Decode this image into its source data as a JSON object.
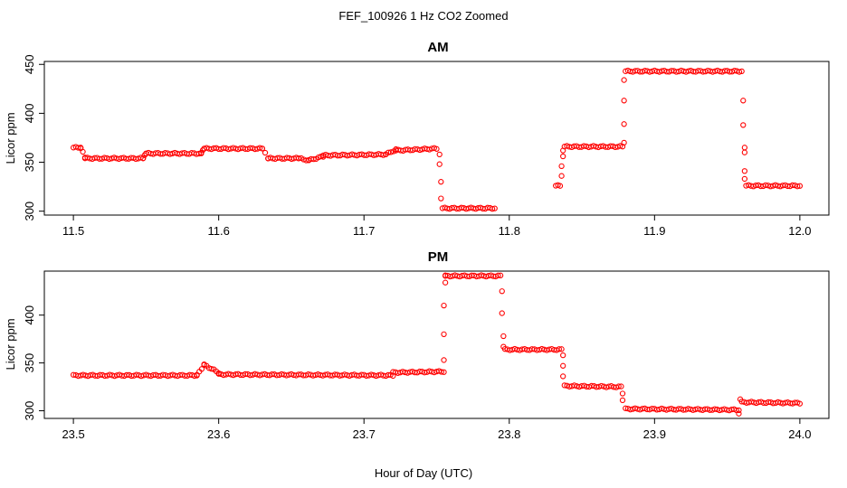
{
  "figure": {
    "title": "FEF_100926 1 Hz CO2 Zoomed",
    "xlabel": "Hour of Day (UTC)"
  },
  "colors": {
    "points": "#ff0000",
    "axes": "#000000",
    "background": "#ffffff"
  },
  "chart_data": [
    {
      "type": "scatter",
      "title": "AM",
      "xlabel": "",
      "ylabel": "Licor ppm",
      "xlim": [
        11.48,
        12.02
      ],
      "ylim": [
        296,
        453
      ],
      "xticks": [
        "11.5",
        "11.6",
        "11.7",
        "11.8",
        "11.9",
        "12.0"
      ],
      "yticks": [
        "300",
        "350",
        "400",
        "450"
      ],
      "xtick_values": [
        11.5,
        11.6,
        11.7,
        11.8,
        11.9,
        12.0
      ],
      "ytick_values": [
        300,
        350,
        400,
        450
      ],
      "grid": false,
      "marker": "open-circle",
      "segments": [
        {
          "x": [
            11.5,
            11.505
          ],
          "y": [
            365,
            365
          ]
        },
        {
          "x": [
            11.505,
            11.508
          ],
          "y": [
            365,
            355
          ]
        },
        {
          "x": [
            11.508,
            11.548
          ],
          "y": [
            354,
            354
          ]
        },
        {
          "x": [
            11.548,
            11.55
          ],
          "y": [
            354,
            359
          ]
        },
        {
          "x": [
            11.55,
            11.588
          ],
          "y": [
            359,
            359
          ]
        },
        {
          "x": [
            11.588,
            11.59
          ],
          "y": [
            359,
            364
          ]
        },
        {
          "x": [
            11.59,
            11.63
          ],
          "y": [
            364,
            364
          ]
        },
        {
          "x": [
            11.63,
            11.634
          ],
          "y": [
            364,
            354
          ]
        },
        {
          "x": [
            11.634,
            11.655
          ],
          "y": [
            354,
            354
          ]
        },
        {
          "x": [
            11.655,
            11.662
          ],
          "y": [
            354,
            352
          ]
        },
        {
          "x": [
            11.662,
            11.672
          ],
          "y": [
            352,
            356
          ]
        },
        {
          "x": [
            11.672,
            11.715
          ],
          "y": [
            357,
            358
          ]
        },
        {
          "x": [
            11.715,
            11.722
          ],
          "y": [
            358,
            363
          ]
        },
        {
          "x": [
            11.722,
            11.75
          ],
          "y": [
            362,
            364
          ]
        },
        {
          "x": [
            11.754,
            11.79
          ],
          "y": [
            303,
            303
          ]
        },
        {
          "x": [
            11.832,
            11.835
          ],
          "y": [
            326,
            326
          ]
        },
        {
          "x": [
            11.838,
            11.878
          ],
          "y": [
            366,
            366
          ]
        },
        {
          "x": [
            11.88,
            11.96
          ],
          "y": [
            443,
            443
          ]
        },
        {
          "x": [
            11.963,
            12.0
          ],
          "y": [
            326,
            326
          ]
        }
      ],
      "points": {
        "x": [
          11.752,
          11.752,
          11.753,
          11.753,
          11.836,
          11.836,
          11.837,
          11.837,
          11.879,
          11.879,
          11.879,
          11.879,
          11.961,
          11.961,
          11.962,
          11.962,
          11.962,
          11.962
        ],
        "y": [
          358,
          348,
          330,
          313,
          336,
          346,
          356,
          362,
          370,
          389,
          413,
          434,
          413,
          388,
          365,
          360,
          341,
          333
        ]
      }
    },
    {
      "type": "scatter",
      "title": "PM",
      "xlabel": "",
      "ylabel": "Licor ppm",
      "xlim": [
        23.48,
        24.02
      ],
      "ylim": [
        292,
        446
      ],
      "xticks": [
        "23.5",
        "23.6",
        "23.7",
        "23.8",
        "23.9",
        "24.0"
      ],
      "yticks": [
        "300",
        "350",
        "400"
      ],
      "xtick_values": [
        23.5,
        23.6,
        23.7,
        23.8,
        23.9,
        24.0
      ],
      "ytick_values": [
        300,
        350,
        400
      ],
      "grid": false,
      "marker": "open-circle",
      "segments": [
        {
          "x": [
            23.5,
            23.585
          ],
          "y": [
            337,
            337
          ]
        },
        {
          "x": [
            23.585,
            23.59
          ],
          "y": [
            337,
            348
          ]
        },
        {
          "x": [
            23.59,
            23.6
          ],
          "y": [
            348,
            340
          ]
        },
        {
          "x": [
            23.6,
            23.72
          ],
          "y": [
            338,
            337
          ]
        },
        {
          "x": [
            23.72,
            23.755
          ],
          "y": [
            340,
            341
          ]
        },
        {
          "x": [
            23.756,
            23.794
          ],
          "y": [
            441,
            441
          ]
        },
        {
          "x": [
            23.797,
            23.836
          ],
          "y": [
            364,
            364
          ]
        },
        {
          "x": [
            23.838,
            23.877
          ],
          "y": [
            326,
            325
          ]
        },
        {
          "x": [
            23.88,
            23.958
          ],
          "y": [
            302,
            301
          ]
        },
        {
          "x": [
            23.96,
            24.0
          ],
          "y": [
            309,
            308
          ]
        }
      ],
      "points": {
        "x": [
          23.755,
          23.755,
          23.755,
          23.756,
          23.756,
          23.795,
          23.795,
          23.796,
          23.796,
          23.837,
          23.837,
          23.837,
          23.878,
          23.878,
          23.958,
          23.959
        ],
        "y": [
          353,
          380,
          410,
          434,
          441,
          425,
          402,
          378,
          367,
          358,
          347,
          336,
          318,
          311,
          297,
          312
        ]
      }
    }
  ]
}
